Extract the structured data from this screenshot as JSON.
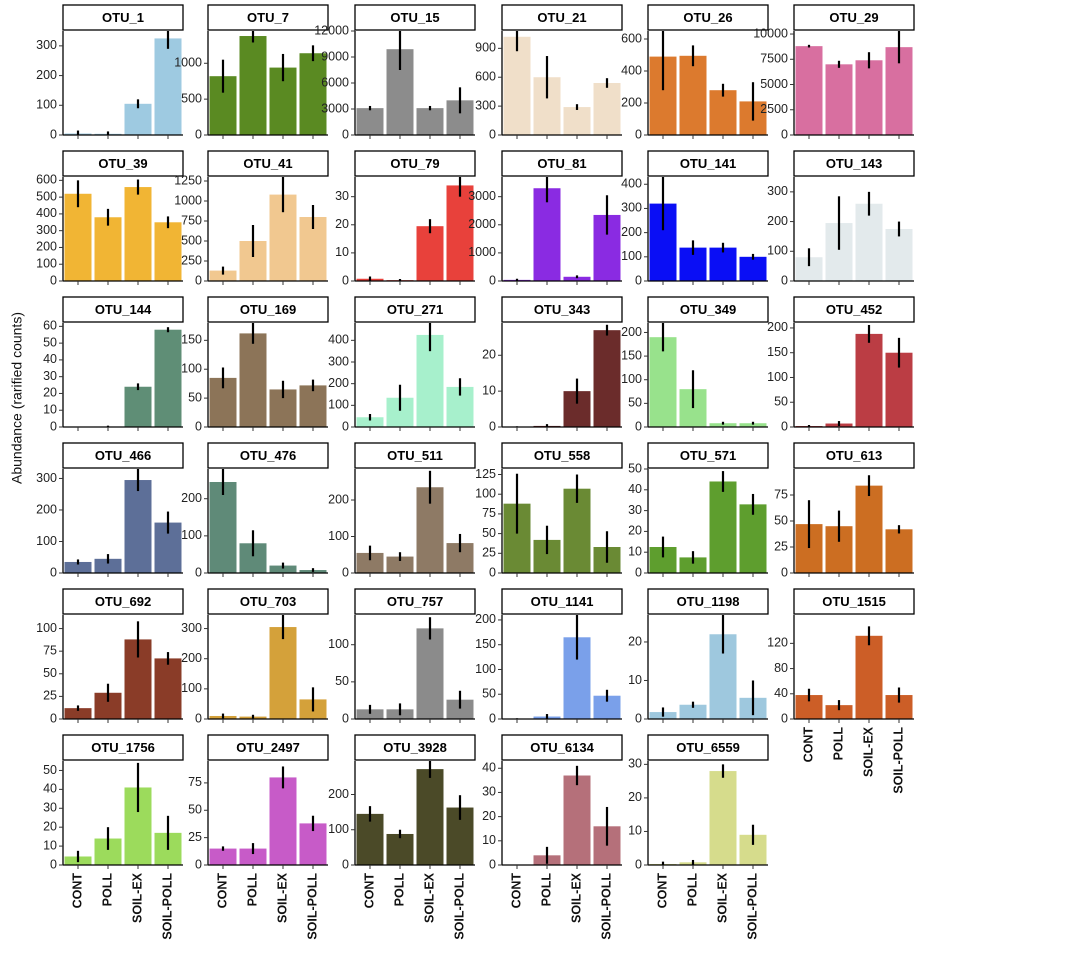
{
  "chart_data": {
    "type": "bar",
    "ylabel": "Abundance (rarified counts)",
    "categories": [
      "CONT",
      "POLL",
      "SOIL-EX",
      "SOIL-POLL"
    ],
    "panels": [
      {
        "name": "OTU_1",
        "color": "#9ecae1",
        "ylim": [
          0,
          350
        ],
        "yticks": [
          0,
          100,
          200,
          300
        ],
        "values": [
          5,
          4,
          105,
          325
        ],
        "errors": [
          10,
          8,
          15,
          35
        ]
      },
      {
        "name": "OTU_7",
        "color": "#5a8a22",
        "ylim": [
          0,
          1450
        ],
        "yticks": [
          0,
          500,
          1000
        ],
        "values": [
          820,
          1380,
          940,
          1140
        ],
        "errors": [
          230,
          90,
          190,
          110
        ]
      },
      {
        "name": "OTU_15",
        "color": "#8c8c8c",
        "ylim": [
          0,
          12000
        ],
        "yticks": [
          0,
          3000,
          6000,
          9000,
          12000
        ],
        "values": [
          3100,
          9900,
          3100,
          4000
        ],
        "errors": [
          250,
          2400,
          250,
          1500
        ]
      },
      {
        "name": "OTU_21",
        "color": "#f0dfc9",
        "ylim": [
          0,
          1080
        ],
        "yticks": [
          0,
          300,
          600,
          900
        ],
        "values": [
          1020,
          600,
          290,
          540
        ],
        "errors": [
          150,
          220,
          30,
          50
        ]
      },
      {
        "name": "OTU_26",
        "color": "#dc7a2e",
        "ylim": [
          0,
          650
        ],
        "yticks": [
          0,
          200,
          400,
          600
        ],
        "values": [
          490,
          495,
          280,
          210
        ],
        "errors": [
          210,
          65,
          40,
          120
        ]
      },
      {
        "name": "OTU_29",
        "color": "#d86fa0",
        "ylim": [
          0,
          10300
        ],
        "yticks": [
          0,
          2500,
          5000,
          7500,
          10000
        ],
        "values": [
          8800,
          7000,
          7400,
          8700
        ],
        "errors": [
          130,
          350,
          800,
          1600
        ]
      },
      {
        "name": "OTU_39",
        "color": "#f1b534",
        "ylim": [
          0,
          620
        ],
        "yticks": [
          0,
          100,
          200,
          300,
          400,
          500,
          600
        ],
        "values": [
          520,
          380,
          560,
          350
        ],
        "errors": [
          80,
          50,
          45,
          35
        ]
      },
      {
        "name": "OTU_41",
        "color": "#f1c890",
        "ylim": [
          0,
          1300
        ],
        "yticks": [
          0,
          250,
          500,
          750,
          1000,
          1250
        ],
        "values": [
          130,
          500,
          1080,
          800
        ],
        "errors": [
          50,
          200,
          220,
          150
        ]
      },
      {
        "name": "OTU_79",
        "color": "#e8413b",
        "ylim": [
          0,
          37
        ],
        "yticks": [
          0,
          10,
          20,
          30
        ],
        "values": [
          0.8,
          0.3,
          19.5,
          34
        ],
        "errors": [
          0.8,
          0.4,
          2.5,
          4
        ]
      },
      {
        "name": "OTU_81",
        "color": "#8a2be2",
        "ylim": [
          0,
          3700
        ],
        "yticks": [
          0,
          1000,
          2000,
          3000
        ],
        "values": [
          40,
          3300,
          150,
          2350
        ],
        "errors": [
          40,
          500,
          50,
          700
        ]
      },
      {
        "name": "OTU_141",
        "color": "#0a0ef5",
        "ylim": [
          0,
          430
        ],
        "yticks": [
          0,
          100,
          200,
          300,
          400
        ],
        "values": [
          320,
          138,
          138,
          100
        ],
        "errors": [
          110,
          30,
          20,
          12
        ]
      },
      {
        "name": "OTU_143",
        "color": "#e3eaec",
        "ylim": [
          0,
          350
        ],
        "yticks": [
          0,
          100,
          200,
          300
        ],
        "values": [
          80,
          195,
          260,
          175
        ],
        "errors": [
          30,
          90,
          40,
          25
        ]
      },
      {
        "name": "OTU_144",
        "color": "#5f8e76",
        "ylim": [
          0,
          62
        ],
        "yticks": [
          0,
          10,
          20,
          30,
          40,
          50,
          60
        ],
        "values": [
          0.1,
          0.3,
          24,
          58
        ],
        "errors": [
          0.1,
          0.5,
          2,
          1.5
        ]
      },
      {
        "name": "OTU_169",
        "color": "#8c7458",
        "ylim": [
          0,
          180
        ],
        "yticks": [
          0,
          50,
          100,
          150
        ],
        "values": [
          85,
          162,
          65,
          72
        ],
        "errors": [
          18,
          18,
          15,
          10
        ]
      },
      {
        "name": "OTU_271",
        "color": "#a7f0cc",
        "ylim": [
          0,
          480
        ],
        "yticks": [
          0,
          100,
          200,
          300,
          400
        ],
        "values": [
          45,
          135,
          425,
          185
        ],
        "errors": [
          15,
          60,
          75,
          40
        ]
      },
      {
        "name": "OTU_343",
        "color": "#6b2c2b",
        "ylim": [
          0,
          29
        ],
        "yticks": [
          0,
          10,
          20
        ],
        "values": [
          0.1,
          0.3,
          10,
          27
        ],
        "errors": [
          0.1,
          0.5,
          3.5,
          1.5
        ]
      },
      {
        "name": "OTU_349",
        "color": "#98e28c",
        "ylim": [
          0,
          220
        ],
        "yticks": [
          0,
          50,
          100,
          150,
          200
        ],
        "values": [
          190,
          80,
          8,
          8
        ],
        "errors": [
          30,
          40,
          3,
          3
        ]
      },
      {
        "name": "OTU_452",
        "color": "#bb3d44",
        "ylim": [
          0,
          210
        ],
        "yticks": [
          0,
          50,
          100,
          150,
          200
        ],
        "values": [
          2,
          7,
          188,
          150
        ],
        "errors": [
          2,
          5,
          18,
          30
        ]
      },
      {
        "name": "OTU_466",
        "color": "#5d6f98",
        "ylim": [
          0,
          330
        ],
        "yticks": [
          0,
          100,
          200,
          300
        ],
        "values": [
          35,
          45,
          295,
          160
        ],
        "errors": [
          8,
          15,
          35,
          35
        ]
      },
      {
        "name": "OTU_476",
        "color": "#5f8a78",
        "ylim": [
          0,
          280
        ],
        "yticks": [
          0,
          100,
          200
        ],
        "values": [
          245,
          80,
          20,
          8
        ],
        "errors": [
          35,
          35,
          8,
          5
        ]
      },
      {
        "name": "OTU_511",
        "color": "#8e7a65",
        "ylim": [
          0,
          285
        ],
        "yticks": [
          0,
          100,
          200
        ],
        "values": [
          55,
          45,
          235,
          82
        ],
        "errors": [
          20,
          12,
          45,
          25
        ]
      },
      {
        "name": "OTU_558",
        "color": "#6a8a34",
        "ylim": [
          0,
          132
        ],
        "yticks": [
          0,
          25,
          50,
          75,
          100,
          125
        ],
        "values": [
          88,
          42,
          107,
          33
        ],
        "errors": [
          38,
          18,
          18,
          20
        ]
      },
      {
        "name": "OTU_571",
        "color": "#5e9e2e",
        "ylim": [
          0,
          50
        ],
        "yticks": [
          0,
          10,
          20,
          30,
          40,
          50
        ],
        "values": [
          12.5,
          7.5,
          44,
          33
        ],
        "errors": [
          5,
          3,
          5,
          5
        ]
      },
      {
        "name": "OTU_613",
        "color": "#cc6e22",
        "ylim": [
          0,
          100
        ],
        "yticks": [
          0,
          25,
          50,
          75
        ],
        "values": [
          47,
          45,
          84,
          42
        ],
        "errors": [
          23,
          15,
          10,
          4
        ]
      },
      {
        "name": "OTU_692",
        "color": "#8a3c28",
        "ylim": [
          0,
          115
        ],
        "yticks": [
          0,
          25,
          50,
          75,
          100
        ],
        "values": [
          12,
          29,
          88,
          67
        ],
        "errors": [
          3,
          10,
          20,
          7
        ]
      },
      {
        "name": "OTU_703",
        "color": "#d4a13a",
        "ylim": [
          0,
          345
        ],
        "yticks": [
          0,
          100,
          200,
          300
        ],
        "values": [
          10,
          8,
          305,
          65
        ],
        "errors": [
          8,
          6,
          40,
          40
        ]
      },
      {
        "name": "OTU_757",
        "color": "#8b8b8b",
        "ylim": [
          0,
          140
        ],
        "yticks": [
          0,
          50,
          100
        ],
        "values": [
          13,
          13,
          122,
          26
        ],
        "errors": [
          6,
          8,
          15,
          12
        ]
      },
      {
        "name": "OTU_1141",
        "color": "#7aa0ea",
        "ylim": [
          0,
          210
        ],
        "yticks": [
          0,
          50,
          100,
          150,
          200
        ],
        "values": [
          0.5,
          5,
          165,
          47
        ],
        "errors": [
          1,
          5,
          45,
          12
        ]
      },
      {
        "name": "OTU_1198",
        "color": "#9ec8de",
        "ylim": [
          0,
          27
        ],
        "yticks": [
          0,
          10,
          20
        ],
        "values": [
          1.8,
          3.7,
          22,
          5.5
        ],
        "errors": [
          1.2,
          0.8,
          5,
          4.5
        ]
      },
      {
        "name": "OTU_1515",
        "color": "#cc5e27",
        "ylim": [
          0,
          165
        ],
        "yticks": [
          0,
          40,
          80,
          120
        ],
        "values": [
          38,
          22,
          132,
          38
        ],
        "errors": [
          10,
          8,
          15,
          12
        ]
      },
      {
        "name": "OTU_1756",
        "color": "#9cdb5c",
        "ylim": [
          0,
          55
        ],
        "yticks": [
          0,
          10,
          20,
          30,
          40,
          50
        ],
        "values": [
          4.5,
          14,
          41,
          17
        ],
        "errors": [
          3,
          6,
          13,
          9
        ]
      },
      {
        "name": "OTU_2497",
        "color": "#c75bc8",
        "ylim": [
          0,
          95
        ],
        "yticks": [
          0,
          25,
          50,
          75
        ],
        "values": [
          15,
          15,
          80,
          38
        ],
        "errors": [
          2,
          5,
          10,
          7
        ]
      },
      {
        "name": "OTU_3928",
        "color": "#4b4a28",
        "ylim": [
          0,
          295
        ],
        "yticks": [
          0,
          100,
          200
        ],
        "values": [
          145,
          88,
          272,
          163
        ],
        "errors": [
          22,
          12,
          25,
          35
        ]
      },
      {
        "name": "OTU_6134",
        "color": "#b5707a",
        "ylim": [
          0,
          43
        ],
        "yticks": [
          0,
          10,
          20,
          30,
          40
        ],
        "values": [
          0.1,
          4,
          37,
          16
        ],
        "errors": [
          0.1,
          3.5,
          4,
          8
        ]
      },
      {
        "name": "OTU_6559",
        "color": "#d6dc8c",
        "ylim": [
          0,
          31
        ],
        "yticks": [
          0,
          10,
          20,
          30
        ],
        "values": [
          0.3,
          0.8,
          28,
          9
        ],
        "errors": [
          0.7,
          0.7,
          2,
          3
        ]
      }
    ]
  }
}
